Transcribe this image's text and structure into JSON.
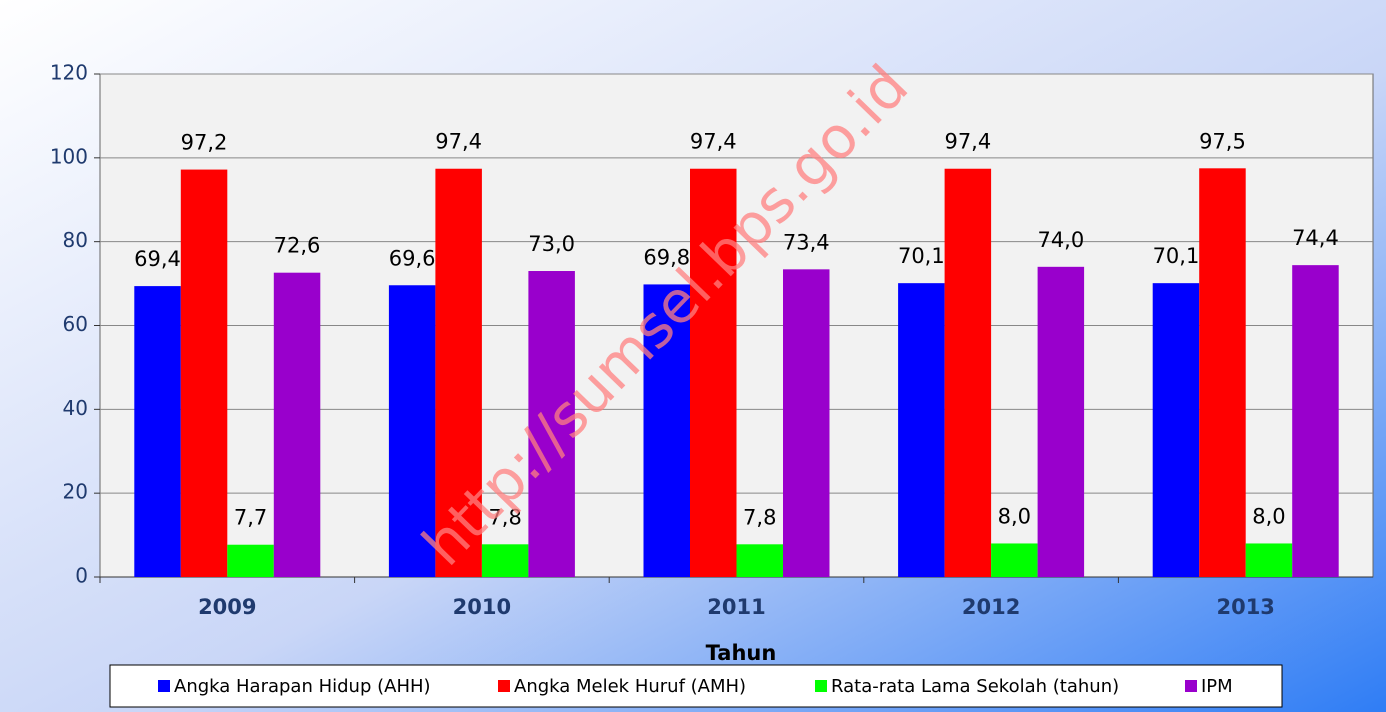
{
  "chart_data": {
    "type": "bar",
    "x_label": "Tahun",
    "watermark": "http://sumsel.bps.go.id",
    "categories": [
      "2009",
      "2010",
      "2011",
      "2012",
      "2013"
    ],
    "series": [
      {
        "name": "Angka Harapan Hidup (AHH)",
        "color": "#0000ff",
        "values": [
          69.4,
          69.6,
          69.8,
          70.1,
          70.1
        ],
        "value_labels": [
          "69,4",
          "69,6",
          "69,8",
          "70,1",
          "70,1"
        ]
      },
      {
        "name": "Angka Melek Huruf (AMH)",
        "color": "#ff0000",
        "values": [
          97.2,
          97.4,
          97.4,
          97.4,
          97.5
        ],
        "value_labels": [
          "97,2",
          "97,4",
          "97,4",
          "97,4",
          "97,5"
        ]
      },
      {
        "name": "Rata-rata Lama Sekolah (tahun)",
        "color": "#00ff00",
        "values": [
          7.7,
          7.8,
          7.8,
          8.0,
          8.0
        ],
        "value_labels": [
          "7,7",
          "7,8",
          "7,8",
          "8,0",
          "8,0"
        ]
      },
      {
        "name": "IPM",
        "color": "#9900cc",
        "values": [
          72.6,
          73.0,
          73.4,
          74.0,
          74.4
        ],
        "value_labels": [
          "72,6",
          "73,0",
          "73,4",
          "74,0",
          "74,4"
        ]
      }
    ],
    "ylim": [
      0,
      120
    ],
    "yticks": [
      0,
      20,
      40,
      60,
      80,
      100,
      120
    ],
    "grid": true,
    "legend": "bottom"
  }
}
